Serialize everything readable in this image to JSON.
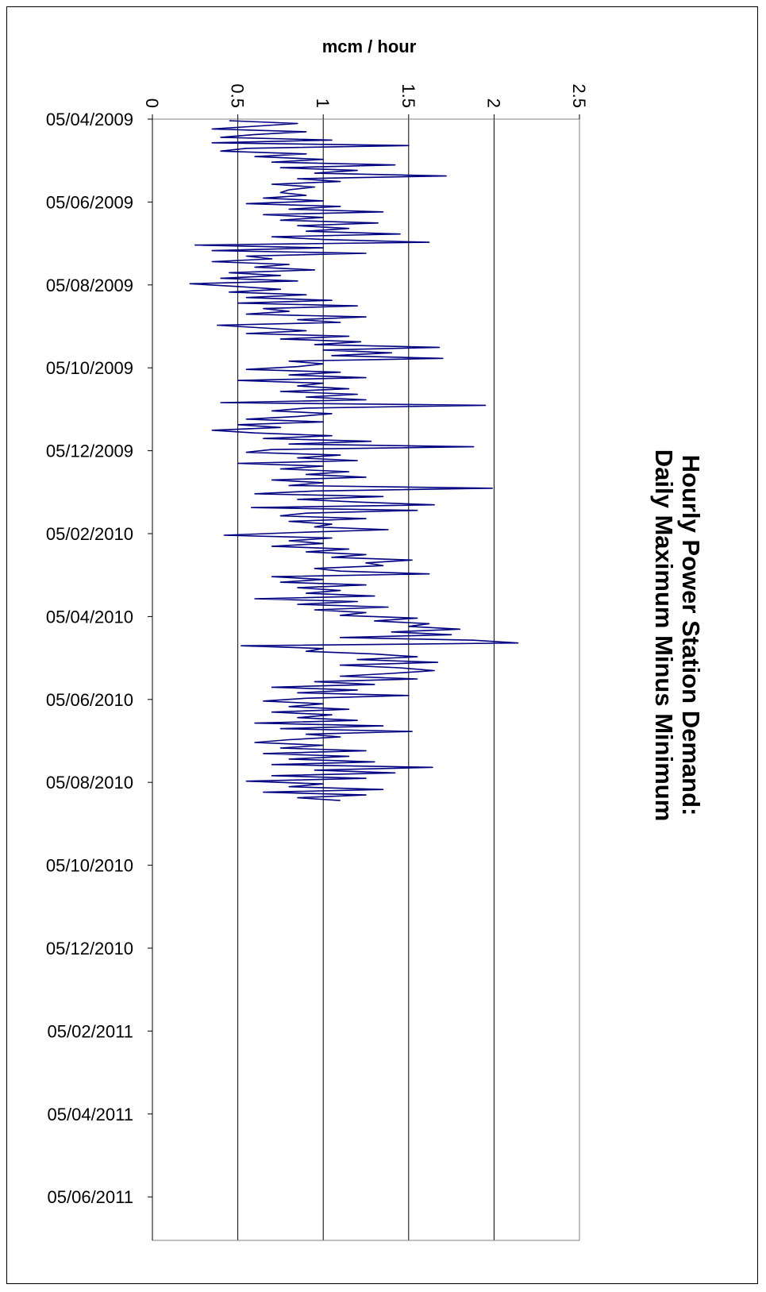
{
  "chart_data": {
    "type": "line",
    "title_line1": "Hourly Power Station Demand:",
    "title_line2": "Daily Maximum Minus Minimum",
    "ylabel": "mcm / hour",
    "xlabel": "",
    "ylim": [
      0,
      2.5
    ],
    "y_ticks": [
      "0",
      "0.5",
      "1",
      "1.5",
      "2",
      "2.5"
    ],
    "x_ticks": [
      "05/04/2009",
      "05/06/2009",
      "05/08/2009",
      "05/10/2009",
      "05/12/2009",
      "05/02/2010",
      "05/04/2010",
      "05/06/2010",
      "05/08/2010",
      "05/10/2010",
      "05/12/2010",
      "05/02/2011",
      "05/04/2011",
      "05/06/2011"
    ],
    "grid": "horizontal value gridlines at 0.5, 1, 1.5, 2",
    "orientation": "rotated 90 degrees clockwise",
    "series_color": "#000080",
    "series": [
      {
        "points_per_month": 15,
        "values": [
          0.45,
          0.85,
          0.6,
          0.35,
          0.9,
          0.6,
          0.4,
          1.05,
          0.35,
          1.5,
          0.55,
          0.4,
          0.9,
          0.6,
          1.0,
          0.7,
          1.42,
          0.75,
          1.2,
          0.95,
          1.72,
          0.85,
          1.1,
          0.7,
          0.95,
          0.8,
          0.75,
          0.9,
          0.65,
          1.0,
          0.55,
          1.1,
          0.8,
          1.35,
          0.65,
          1.0,
          0.75,
          1.32,
          0.85,
          1.15,
          0.9,
          1.45,
          0.7,
          1.0,
          1.62,
          0.25,
          1.0,
          0.35,
          1.25,
          0.55,
          0.7,
          0.35,
          0.8,
          0.6,
          0.95,
          0.45,
          0.75,
          0.4,
          0.85,
          0.22,
          0.5,
          0.75,
          0.45,
          0.9,
          0.55,
          1.05,
          0.5,
          1.2,
          0.65,
          0.8,
          0.55,
          1.25,
          0.85,
          1.1,
          0.38,
          0.65,
          0.9,
          0.55,
          1.15,
          0.75,
          1.22,
          0.95,
          1.68,
          1.0,
          1.4,
          1.05,
          1.7,
          0.8,
          1.0,
          0.85,
          0.55,
          1.1,
          0.8,
          1.25,
          0.5,
          1.0,
          0.85,
          1.15,
          0.75,
          1.2,
          0.9,
          1.25,
          0.4,
          1.95,
          0.9,
          0.7,
          1.05,
          0.85,
          0.55,
          1.0,
          0.5,
          0.75,
          0.35,
          0.6,
          1.05,
          0.65,
          1.28,
          0.8,
          1.88,
          0.7,
          0.55,
          1.1,
          0.85,
          1.2,
          0.5,
          1.0,
          0.75,
          1.15,
          0.9,
          1.25,
          0.7,
          1.0,
          0.8,
          1.99,
          0.95,
          0.6,
          1.35,
          0.85,
          1.2,
          1.65,
          0.58,
          1.55,
          0.9,
          0.75,
          1.25,
          0.8,
          1.05,
          0.95,
          1.38,
          0.85,
          0.42,
          1.05,
          0.8,
          1.0,
          0.7,
          1.15,
          0.9,
          1.25,
          1.05,
          1.52,
          1.25,
          1.35,
          0.95,
          1.1,
          1.62,
          0.7,
          1.0,
          0.75,
          1.25,
          0.85,
          1.1,
          0.9,
          1.3,
          0.6,
          1.2,
          0.85,
          1.38,
          0.95,
          1.25,
          1.1,
          1.55,
          1.3,
          1.62,
          1.5,
          1.8,
          1.4,
          1.75,
          1.1,
          1.88,
          2.14,
          0.52,
          1.0,
          0.9,
          1.3,
          1.55,
          1.2,
          1.67,
          1.1,
          1.45,
          1.65,
          1.4,
          1.1,
          1.55,
          0.95,
          1.3,
          0.7,
          1.2,
          0.85,
          1.5,
          0.9,
          0.65,
          1.0,
          0.8,
          1.15,
          0.7,
          1.05,
          0.85,
          1.2,
          0.6,
          1.35,
          0.75,
          1.52,
          0.9,
          1.1,
          0.8,
          0.6,
          1.0,
          0.75,
          1.25,
          0.65,
          1.15,
          0.8,
          1.3,
          0.7,
          1.64,
          0.95,
          1.42,
          0.7,
          1.25,
          0.55,
          1.0,
          0.8,
          1.35,
          0.65,
          1.25,
          0.85,
          1.1
        ]
      }
    ]
  }
}
